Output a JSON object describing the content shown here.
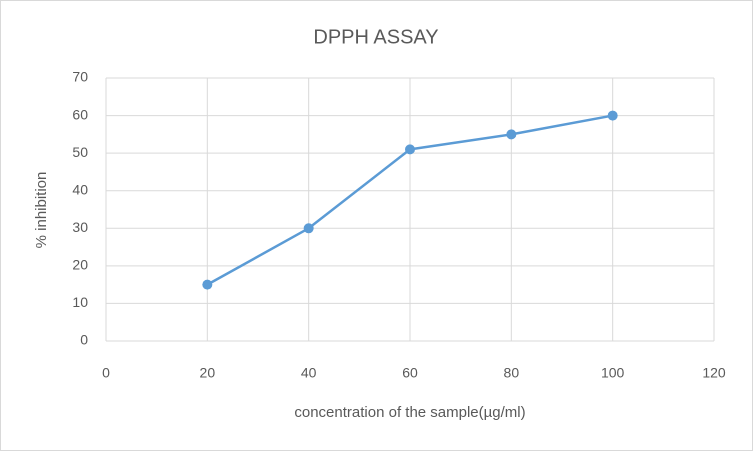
{
  "chart_data": {
    "type": "line",
    "title": "DPPH ASSAY",
    "x_label": "concentration of the sample(µg/ml)",
    "y_label": "% inhibition",
    "x": [
      20,
      40,
      60,
      80,
      100
    ],
    "series": [
      {
        "name": "% inhibition",
        "color": "#5b9bd5",
        "values": [
          15,
          30,
          51,
          55,
          60
        ]
      }
    ],
    "xlim": [
      0,
      120
    ],
    "xticks": [
      0,
      20,
      40,
      60,
      80,
      100,
      120
    ],
    "ylim": [
      0,
      70
    ],
    "yticks": [
      0,
      10,
      20,
      30,
      40,
      50,
      60,
      70
    ],
    "grid": true
  }
}
